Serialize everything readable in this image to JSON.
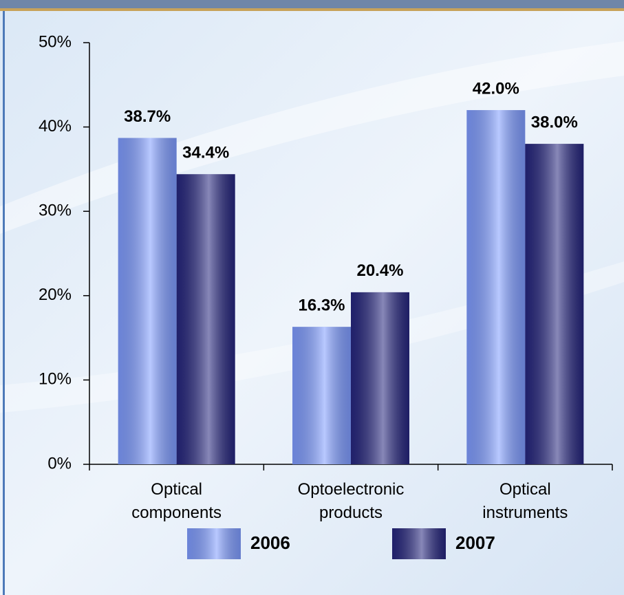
{
  "chart_data": {
    "type": "bar",
    "categories": [
      "Optical components",
      "Optoelectronic products",
      "Optical instruments"
    ],
    "series": [
      {
        "name": "2006",
        "color": "#7f9cff",
        "values": [
          38.7,
          16.3,
          42.0
        ],
        "value_labels": [
          "38.7%",
          "16.3%",
          "42.0%"
        ]
      },
      {
        "name": "2007",
        "color": "#26267e",
        "values": [
          34.4,
          20.4,
          38.0
        ],
        "value_labels": [
          "34.4%",
          "20.4%",
          "38.0%"
        ]
      }
    ],
    "ylim": [
      0,
      50
    ],
    "yticks": [
      {
        "value": 0,
        "label": "0%"
      },
      {
        "value": 10,
        "label": "10%"
      },
      {
        "value": 20,
        "label": "20%"
      },
      {
        "value": 30,
        "label": "30%"
      },
      {
        "value": 40,
        "label": "40%"
      },
      {
        "value": 50,
        "label": "50%"
      }
    ],
    "legend": "bottom"
  }
}
